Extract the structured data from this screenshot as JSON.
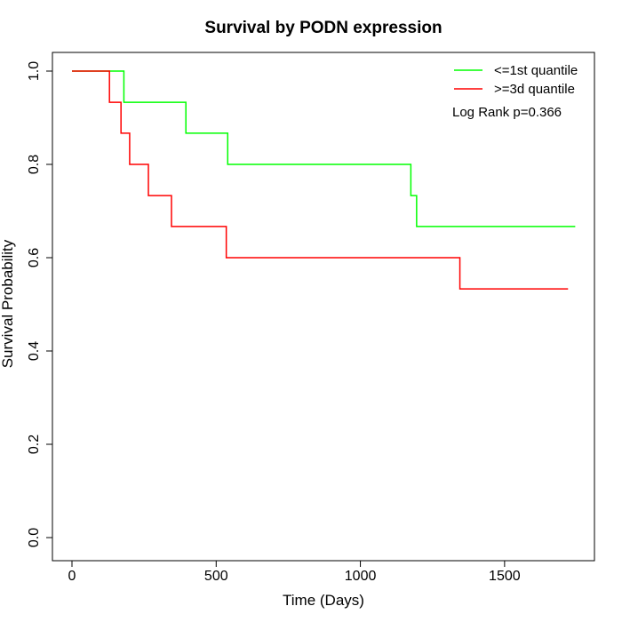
{
  "chart_data": {
    "type": "line",
    "title": "Survival by PODN expression",
    "xlabel": "Time (Days)",
    "ylabel": "Survival Probability",
    "xlim": [
      0,
      1800
    ],
    "ylim": [
      0,
      1
    ],
    "x_ticks": [
      0,
      500,
      1000,
      1500
    ],
    "y_ticks": [
      0.0,
      0.2,
      0.4,
      0.6,
      0.8,
      1.0
    ],
    "x_tick_labels": [
      "0",
      "500",
      "1000",
      "1500"
    ],
    "y_tick_labels": [
      "0.0",
      "0.2",
      "0.4",
      "0.6",
      "0.8",
      "1.0"
    ],
    "grid": false,
    "legend_position": "top-right",
    "annotation": "Log Rank p=0.366",
    "series": [
      {
        "name": "<=1st quantile",
        "color": "#00ff00",
        "step": true,
        "x": [
          0,
          180,
          395,
          540,
          1175,
          1195,
          1745
        ],
        "y": [
          1.0,
          0.933,
          0.867,
          0.8,
          0.733,
          0.667,
          0.667
        ]
      },
      {
        "name": ">=3d quantile",
        "color": "#ff0000",
        "step": true,
        "x": [
          0,
          130,
          170,
          200,
          265,
          345,
          535,
          1345,
          1720
        ],
        "y": [
          1.0,
          0.933,
          0.867,
          0.8,
          0.733,
          0.667,
          0.6,
          0.533,
          0.533
        ]
      }
    ]
  }
}
